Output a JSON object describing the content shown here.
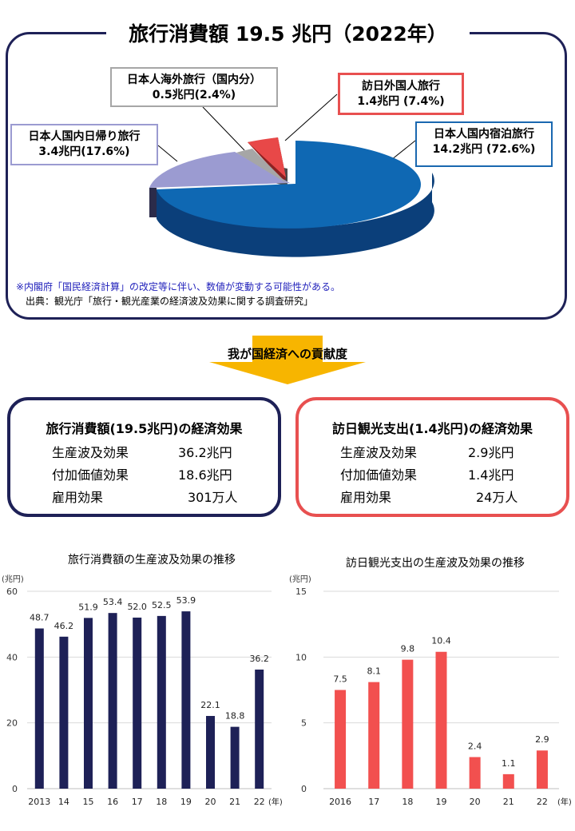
{
  "header": {
    "title": "旅行消費額  19.5 兆円（2022年）"
  },
  "pie": {
    "labels": {
      "domestic_daytrip": [
        "日本人国内日帰り旅行",
        "3.4兆円(17.6%)"
      ],
      "outbound_domestic_part": [
        "日本人海外旅行（国内分）",
        "0.5兆円(2.4%)"
      ],
      "inbound": [
        "訪日外国人旅行",
        "1.4兆円 (7.4%)"
      ],
      "domestic_overnight": [
        "日本人国内宿泊旅行",
        "14.2兆円 (72.6%)"
      ]
    },
    "note": "※内閣府「国民経済計算」の改定等に伴い、数値が変動する可能性がある。",
    "source": "出典：観光庁「旅行・観光産業の経済波及効果に関する調査研究」"
  },
  "contribution_label": "我が国経済への貢献度",
  "effects": {
    "total": {
      "title": "旅行消費額(19.5兆円)の経済効果",
      "rows": [
        {
          "label": "生産波及効果",
          "value": "36.2兆円"
        },
        {
          "label": "付加価値効果",
          "value": "18.6兆円"
        },
        {
          "label": "雇用効果",
          "value": "301万人"
        }
      ]
    },
    "inbound": {
      "title": "訪日観光支出(1.4兆円)の経済効果",
      "rows": [
        {
          "label": "生産波及効果",
          "value": "2.9兆円"
        },
        {
          "label": "付加価値効果",
          "value": "1.4兆円"
        },
        {
          "label": "雇用効果",
          "value": "24万人"
        }
      ]
    }
  },
  "colors": {
    "navy": "#1e2157",
    "red": "#e85050",
    "pie_blue": "#0f68b3",
    "pie_lavender": "#9b9bd1",
    "pie_gray": "#a6a6a6",
    "pie_red": "#e84848",
    "arrow": "#f7b500"
  },
  "chart_data": [
    {
      "type": "pie",
      "title": "旅行消費額  19.5 兆円（2022年）",
      "slices": [
        {
          "name": "日本人国内宿泊旅行",
          "value": 14.2,
          "percent": 72.6
        },
        {
          "name": "日本人国内日帰り旅行",
          "value": 3.4,
          "percent": 17.6
        },
        {
          "name": "日本人海外旅行（国内分）",
          "value": 0.5,
          "percent": 2.4
        },
        {
          "name": "訪日外国人旅行",
          "value": 1.4,
          "percent": 7.4
        }
      ]
    },
    {
      "type": "bar",
      "title": "旅行消費額の生産波及効果の推移",
      "categories": [
        "2013",
        "14",
        "15",
        "16",
        "17",
        "18",
        "19",
        "20",
        "21",
        "22"
      ],
      "values": [
        48.7,
        46.2,
        51.9,
        53.4,
        52.0,
        52.5,
        53.9,
        22.1,
        18.8,
        36.2
      ],
      "value_labels": [
        "48.7",
        "46.2",
        "51.9",
        "53.4",
        "52.0",
        "52.5",
        "53.9",
        "22.1",
        "18.8",
        "36.2"
      ],
      "ylim": [
        0,
        60
      ],
      "yticks": [
        0,
        20,
        40,
        60
      ],
      "ylabel": "(兆円)",
      "xlabel": "(年)",
      "color": "#1e2157"
    },
    {
      "type": "bar",
      "title": "訪日観光支出の生産波及効果の推移",
      "categories": [
        "2016",
        "17",
        "18",
        "19",
        "20",
        "21",
        "22"
      ],
      "values": [
        7.5,
        8.1,
        9.8,
        10.4,
        2.4,
        1.1,
        2.9
      ],
      "value_labels": [
        "7.5",
        "8.1",
        "9.8",
        "10.4",
        "2.4",
        "1.1",
        "2.9"
      ],
      "ylim": [
        0,
        15
      ],
      "yticks": [
        0,
        5,
        10,
        15
      ],
      "ylabel": "(兆円)",
      "xlabel": "(年)",
      "color": "#f2504f"
    }
  ]
}
